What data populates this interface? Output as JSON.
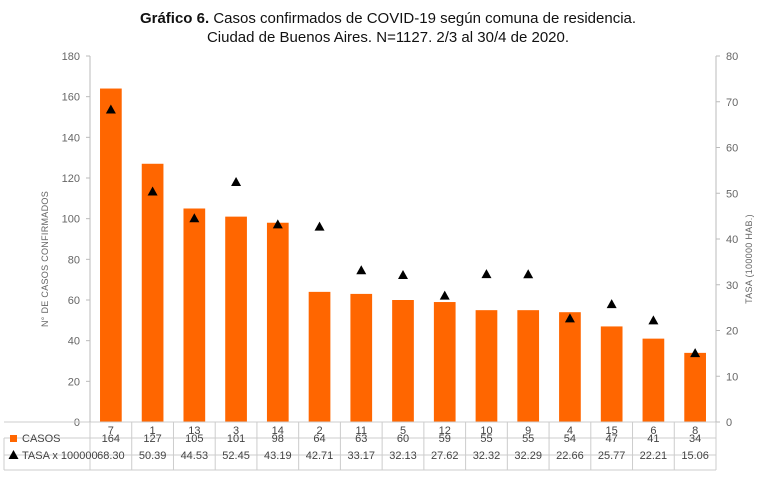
{
  "chart_data": {
    "type": "bar",
    "title_bold": "Gráfico 6.",
    "title_rest": " Casos confirmados de COVID-19 según comuna de residencia.",
    "subtitle": "Ciudad de Buenos Aires. N=1127. 2/3 al 30/4 de 2020.",
    "ylabel": "N° DE CASOS CONFIRMADOS",
    "y2label": "TASA (100000 HAB.)",
    "ylim": [
      0,
      180
    ],
    "y2lim": [
      0,
      80
    ],
    "yticks": [
      "0",
      "20",
      "40",
      "60",
      "80",
      "100",
      "120",
      "140",
      "160",
      "180"
    ],
    "y2ticks": [
      "0",
      "10",
      "20",
      "30",
      "40",
      "50",
      "60",
      "70",
      "80"
    ],
    "categories": [
      "7",
      "1",
      "13",
      "3",
      "14",
      "2",
      "11",
      "5",
      "12",
      "10",
      "9",
      "4",
      "15",
      "6",
      "8"
    ],
    "series": [
      {
        "name": "CASOS",
        "type": "bar",
        "color": "#FF6600",
        "values": [
          164,
          127,
          105,
          101,
          98,
          64,
          63,
          60,
          59,
          55,
          55,
          54,
          47,
          41,
          34
        ],
        "labels": [
          "164",
          "127",
          "105",
          "101",
          "98",
          "64",
          "63",
          "60",
          "59",
          "55",
          "55",
          "54",
          "47",
          "41",
          "34"
        ]
      },
      {
        "name": "TASA x 100000",
        "type": "scatter",
        "marker": "triangle",
        "color": "#000000",
        "axis": "right",
        "values": [
          68.3,
          50.39,
          44.53,
          52.45,
          43.19,
          42.71,
          33.17,
          32.13,
          27.62,
          32.32,
          32.29,
          22.66,
          25.77,
          22.21,
          15.06
        ],
        "labels": [
          "68.30",
          "50.39",
          "44.53",
          "52.45",
          "43.19",
          "42.71",
          "33.17",
          "32.13",
          "27.62",
          "32.32",
          "32.29",
          "22.66",
          "25.77",
          "22.21",
          "15.06"
        ]
      }
    ],
    "grid": false,
    "legend": "data-table-bottom"
  }
}
